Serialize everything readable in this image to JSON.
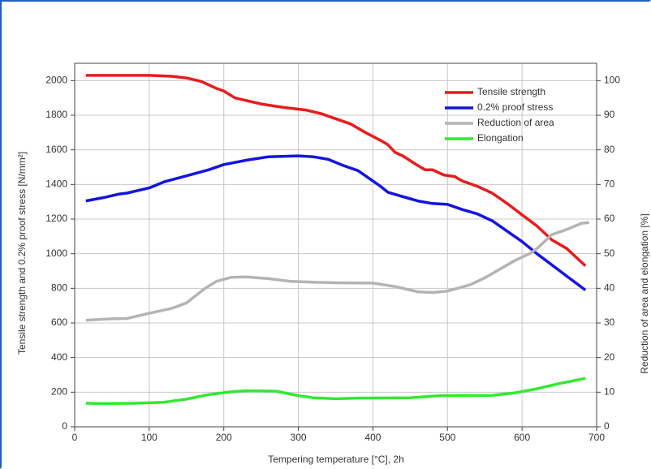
{
  "chart_data": {
    "type": "line",
    "x_label": "Tempering temperature [°C], 2h",
    "y_label": "Tensile strength and 0.2% proof stress [N/mm²]",
    "y2_label": "Reduction of area and elongation [%]",
    "xlim": [
      0,
      700
    ],
    "xticks": [
      0,
      100,
      200,
      300,
      400,
      500,
      600,
      700
    ],
    "ylim": [
      0,
      2100
    ],
    "yticks": [
      0,
      200,
      400,
      600,
      800,
      1000,
      1200,
      1400,
      1600,
      1800,
      2000
    ],
    "y2lim": [
      0,
      105
    ],
    "y2ticks": [
      0,
      10,
      20,
      30,
      40,
      50,
      60,
      70,
      80,
      90,
      100
    ],
    "grid": true,
    "legend": "upper right",
    "series": [
      {
        "name": "Tensile strength",
        "color": "#e81c1c",
        "x": [
          15,
          50,
          100,
          130,
          150,
          170,
          190,
          200,
          215,
          250,
          280,
          310,
          330,
          350,
          370,
          390,
          410,
          420,
          430,
          440,
          460,
          470,
          480,
          495,
          510,
          520,
          540,
          560,
          580,
          600,
          620,
          640,
          660,
          685
        ],
        "values": [
          2030,
          2030,
          2030,
          2025,
          2015,
          1995,
          1955,
          1940,
          1900,
          1865,
          1845,
          1830,
          1810,
          1780,
          1750,
          1700,
          1655,
          1630,
          1585,
          1565,
          1510,
          1485,
          1485,
          1455,
          1445,
          1420,
          1390,
          1350,
          1290,
          1225,
          1160,
          1080,
          1030,
          930
        ]
      },
      {
        "name": "0.2% proof stress",
        "color": "#1414e0",
        "x": [
          15,
          40,
          60,
          70,
          100,
          120,
          150,
          180,
          200,
          230,
          260,
          300,
          320,
          340,
          360,
          380,
          400,
          410,
          420,
          440,
          460,
          480,
          500,
          520,
          540,
          560,
          580,
          600,
          620,
          640,
          660,
          685
        ],
        "values": [
          1305,
          1325,
          1345,
          1350,
          1380,
          1415,
          1450,
          1485,
          1515,
          1540,
          1560,
          1565,
          1560,
          1545,
          1510,
          1480,
          1420,
          1390,
          1355,
          1330,
          1305,
          1290,
          1285,
          1255,
          1230,
          1190,
          1130,
          1070,
          1000,
          935,
          870,
          790
        ]
      },
      {
        "name": "Reduction of area",
        "color": "#b4b4b4",
        "axis": "y2",
        "x": [
          15,
          50,
          70,
          100,
          130,
          150,
          160,
          175,
          190,
          210,
          230,
          260,
          290,
          320,
          350,
          400,
          430,
          460,
          480,
          500,
          530,
          550,
          570,
          590,
          610,
          620,
          640,
          660,
          680,
          690
        ],
        "values": [
          30.8,
          31.2,
          31.3,
          32.8,
          34.2,
          35.8,
          37.5,
          40,
          42,
          43.2,
          43.3,
          42.8,
          42,
          41.8,
          41.6,
          41.5,
          40.5,
          39,
          38.8,
          39.2,
          41,
          43,
          45.5,
          48,
          50,
          51.5,
          55.5,
          57,
          58.8,
          59
        ]
      },
      {
        "name": "Elongation",
        "color": "#33e833",
        "axis": "y2",
        "x": [
          15,
          40,
          80,
          120,
          150,
          180,
          210,
          230,
          270,
          300,
          320,
          350,
          380,
          450,
          490,
          560,
          590,
          620,
          650,
          685
        ],
        "values": [
          6.8,
          6.7,
          6.8,
          7.1,
          8,
          9.3,
          10.1,
          10.4,
          10.3,
          9,
          8.4,
          8.1,
          8.3,
          8.4,
          9,
          9.1,
          9.8,
          11,
          12.5,
          14
        ]
      }
    ]
  }
}
